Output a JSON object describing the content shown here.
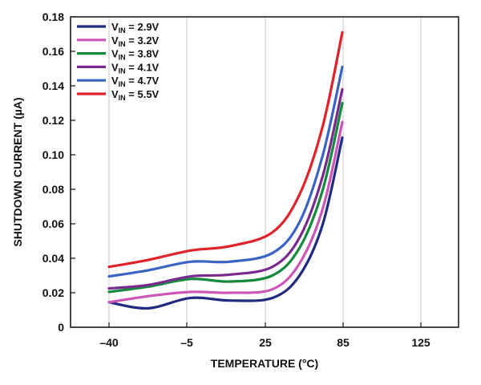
{
  "chart_data": {
    "type": "line",
    "xlabel": "TEMPERATURE (°C)",
    "ylabel": "SHUTDOWN CURRENT (µA)",
    "x_categories": [
      "–40",
      "–5",
      "25",
      "85",
      "125"
    ],
    "y_ticks": [
      "0",
      "0.02",
      "0.04",
      "0.06",
      "0.08",
      "0.10",
      "0.12",
      "0.14",
      "0.16",
      "0.18"
    ],
    "ylim": [
      0,
      0.18
    ],
    "grid": "vertical",
    "legend_position": "top-left",
    "series": [
      {
        "name": "VIN = 2.9V",
        "label_main": "V",
        "label_sub": "IN",
        "label_rest": " = 2.9V",
        "color": "#1f2a80",
        "points": [
          [
            0,
            0.0145
          ],
          [
            0.5,
            0.011
          ],
          [
            1.05,
            0.017
          ],
          [
            1.55,
            0.0155
          ],
          [
            2.1,
            0.017
          ],
          [
            2.45,
            0.03
          ],
          [
            2.75,
            0.06
          ],
          [
            3,
            0.11
          ]
        ]
      },
      {
        "name": "VIN = 3.2V",
        "label_main": "V",
        "label_sub": "IN",
        "label_rest": " = 3.2V",
        "color": "#cc55b8",
        "points": [
          [
            0,
            0.0145
          ],
          [
            0.5,
            0.018
          ],
          [
            1.05,
            0.0205
          ],
          [
            1.55,
            0.02
          ],
          [
            2.1,
            0.022
          ],
          [
            2.45,
            0.037
          ],
          [
            2.75,
            0.069
          ],
          [
            3,
            0.119
          ]
        ]
      },
      {
        "name": "VIN = 3.8V",
        "label_main": "V",
        "label_sub": "IN",
        "label_rest": " = 3.8V",
        "color": "#138a3c",
        "points": [
          [
            0,
            0.0205
          ],
          [
            0.5,
            0.0235
          ],
          [
            1.05,
            0.028
          ],
          [
            1.55,
            0.0265
          ],
          [
            2.1,
            0.03
          ],
          [
            2.45,
            0.046
          ],
          [
            2.75,
            0.08
          ],
          [
            3,
            0.13
          ]
        ]
      },
      {
        "name": "VIN = 4.1V",
        "label_main": "V",
        "label_sub": "IN",
        "label_rest": " = 4.1V",
        "color": "#7a2a8e",
        "points": [
          [
            0,
            0.0225
          ],
          [
            0.5,
            0.0245
          ],
          [
            1.05,
            0.0295
          ],
          [
            1.55,
            0.0305
          ],
          [
            2.1,
            0.035
          ],
          [
            2.45,
            0.052
          ],
          [
            2.75,
            0.088
          ],
          [
            3,
            0.138
          ]
        ]
      },
      {
        "name": "VIN = 4.7V",
        "label_main": "V",
        "label_sub": "IN",
        "label_rest": " = 4.7V",
        "color": "#3a64c4",
        "points": [
          [
            0,
            0.0295
          ],
          [
            0.5,
            0.033
          ],
          [
            1.05,
            0.038
          ],
          [
            1.55,
            0.038
          ],
          [
            2.1,
            0.043
          ],
          [
            2.45,
            0.061
          ],
          [
            2.75,
            0.1
          ],
          [
            3,
            0.151
          ]
        ]
      },
      {
        "name": "VIN = 5.5V",
        "label_main": "V",
        "label_sub": "IN",
        "label_rest": " = 5.5V",
        "color": "#e0232a",
        "points": [
          [
            0,
            0.035
          ],
          [
            0.5,
            0.039
          ],
          [
            1.05,
            0.0445
          ],
          [
            1.55,
            0.047
          ],
          [
            2.1,
            0.055
          ],
          [
            2.45,
            0.077
          ],
          [
            2.75,
            0.117
          ],
          [
            3,
            0.171
          ]
        ]
      }
    ]
  }
}
